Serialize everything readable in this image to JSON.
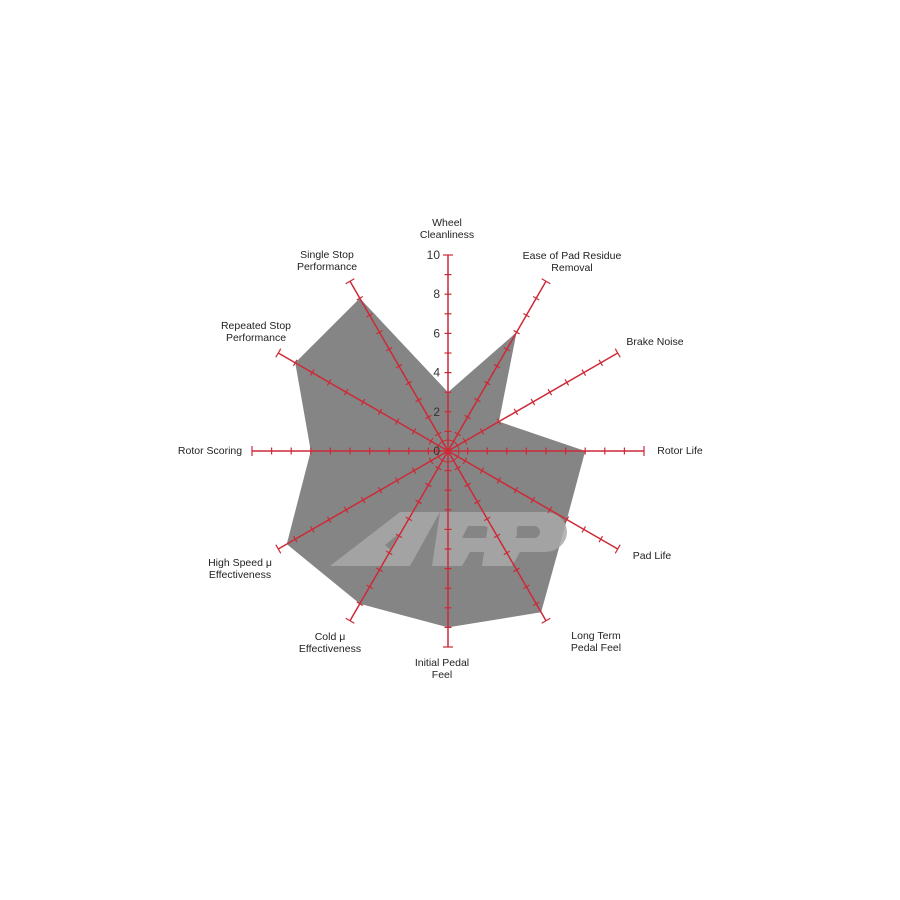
{
  "chart_data": {
    "type": "radar",
    "axes": [
      [
        "Wheel",
        "Cleanliness"
      ],
      [
        "Ease of Pad Residue",
        "Removal"
      ],
      [
        "Brake Noise"
      ],
      [
        "Rotor Life"
      ],
      [
        "Pad Life"
      ],
      [
        "Long Term",
        "Pedal Feel"
      ],
      [
        "Initial Pedal",
        "Feel"
      ],
      [
        "Cold μ",
        "Effectiveness"
      ],
      [
        "High Speed μ",
        "Effectiveness"
      ],
      [
        "Rotor Scoring"
      ],
      [
        "Repeated Stop",
        "Performance"
      ],
      [
        "Single Stop",
        "Performance"
      ]
    ],
    "values": [
      3,
      7,
      3,
      7,
      7,
      9.5,
      9,
      9,
      9.5,
      7,
      9,
      9
    ],
    "range": [
      0,
      10
    ],
    "tick_labels": [
      "0",
      "2",
      "4",
      "6",
      "8",
      "10"
    ],
    "fill_color": "#858585",
    "axis_color": "#cc2a36",
    "watermark": "KPP"
  }
}
